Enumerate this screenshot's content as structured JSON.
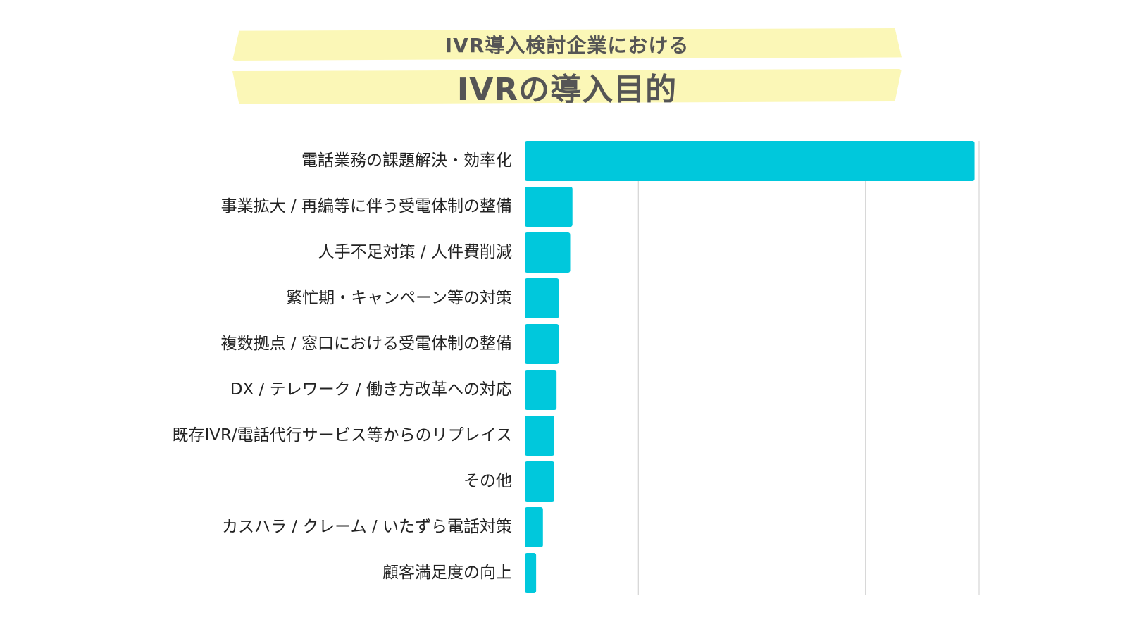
{
  "header": {
    "subtitle": "IVR導入検討企業における",
    "title": "IVRの導入目的"
  },
  "chart_data": {
    "type": "bar",
    "orientation": "horizontal",
    "categories": [
      "電話業務の課題解決・効率化",
      "事業拡大 / 再編等に伴う受電体制の整備",
      "人手不足対策 / 人件費削減",
      "繁忙期・キャンペーン等の対策",
      "複数拠点 / 窓口における受電体制の整備",
      "DX / テレワーク / 働き方改革への対応",
      "既存IVR/電話代行サービス等からのリプレイス",
      "その他",
      "カスハラ / クレーム / いたずら電話対策",
      "顧客満足度の向上"
    ],
    "values": [
      198,
      21,
      20,
      15,
      15,
      14,
      13,
      13,
      8,
      5
    ],
    "xlim": [
      0,
      200
    ],
    "grid": true,
    "bar_color": "#00c8dc",
    "grid_color": "#cccccc"
  }
}
